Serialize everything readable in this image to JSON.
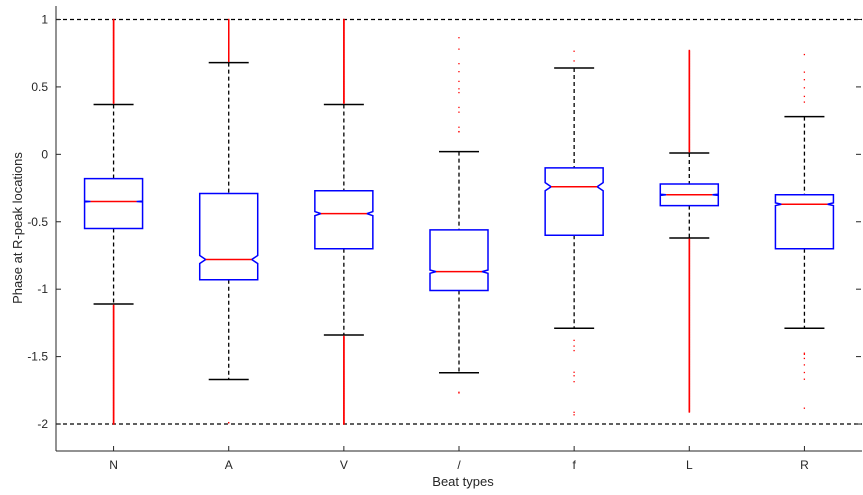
{
  "chart_data": {
    "type": "boxplot",
    "title": "",
    "xlabel": "Beat types",
    "ylabel": "Phase at R-peak locations",
    "ylim": [
      -2.2,
      1.1
    ],
    "yticks": [
      1,
      0.5,
      0,
      -0.5,
      -1,
      -1.5,
      -2
    ],
    "ytick_labels": [
      "1",
      "0.5",
      "0",
      "-0.5",
      "-1",
      "-1.5",
      "-2"
    ],
    "reference_lines": [
      1,
      -2
    ],
    "notched": true,
    "grid": false,
    "colors": {
      "box": "#0000ff",
      "median": "#ff0000",
      "whisker": "#000000",
      "outlier": "#ff0000",
      "axis": "#262626"
    },
    "categories": [
      "N",
      "A",
      "V",
      "/",
      "f",
      "L",
      "R"
    ],
    "boxes": [
      {
        "label": "N",
        "q1": -0.55,
        "median": -0.35,
        "q3": -0.18,
        "whisker_low": -1.11,
        "whisker_high": 0.37,
        "notch_half": 0.003,
        "outliers_high": {
          "from": 0.38,
          "to": 1.0,
          "dense": true
        },
        "outliers_low": {
          "from": -1.12,
          "to": -2.0,
          "dense": true
        }
      },
      {
        "label": "A",
        "q1": -0.93,
        "median": -0.78,
        "q3": -0.29,
        "whisker_low": -1.67,
        "whisker_high": 0.68,
        "notch_half": 0.03,
        "outliers_high": {
          "from": 0.69,
          "to": 1.0,
          "dense": true
        },
        "outliers_low": {
          "from": -1.98,
          "to": -2.0,
          "dense": false
        }
      },
      {
        "label": "V",
        "q1": -0.7,
        "median": -0.44,
        "q3": -0.27,
        "whisker_low": -1.34,
        "whisker_high": 0.37,
        "notch_half": 0.015,
        "outliers_high": {
          "from": 0.38,
          "to": 1.0,
          "dense": true
        },
        "outliers_low": {
          "from": -1.35,
          "to": -2.0,
          "dense": true
        }
      },
      {
        "label": "/",
        "q1": -1.01,
        "median": -0.87,
        "q3": -0.56,
        "whisker_low": -1.62,
        "whisker_high": 0.02,
        "notch_half": 0.012,
        "outliers_high": {
          "from": 0.1,
          "to": 0.97,
          "dense": false
        },
        "outliers_low": {
          "from": -1.76,
          "to": -1.78,
          "dense": false
        }
      },
      {
        "label": "f",
        "q1": -0.6,
        "median": -0.24,
        "q3": -0.1,
        "whisker_low": -1.29,
        "whisker_high": 0.64,
        "notch_half": 0.03,
        "outliers_high": {
          "from": 0.67,
          "to": 0.81,
          "dense": false
        },
        "outliers_low": {
          "from": -1.35,
          "to": -1.95,
          "dense": false
        }
      },
      {
        "label": "L",
        "q1": -0.38,
        "median": -0.3,
        "q3": -0.22,
        "whisker_low": -0.62,
        "whisker_high": 0.01,
        "notch_half": 0.004,
        "outliers_high": {
          "from": 0.02,
          "to": 0.77,
          "dense": true
        },
        "outliers_low": {
          "from": -0.63,
          "to": -1.91,
          "dense": true
        }
      },
      {
        "label": "R",
        "q1": -0.7,
        "median": -0.37,
        "q3": -0.3,
        "whisker_low": -1.29,
        "whisker_high": 0.28,
        "notch_half": 0.01,
        "outliers_high": {
          "from": 0.3,
          "to": 0.76,
          "dense": false
        },
        "outliers_low": {
          "from": -1.4,
          "to": -1.89,
          "dense": false
        }
      }
    ]
  }
}
